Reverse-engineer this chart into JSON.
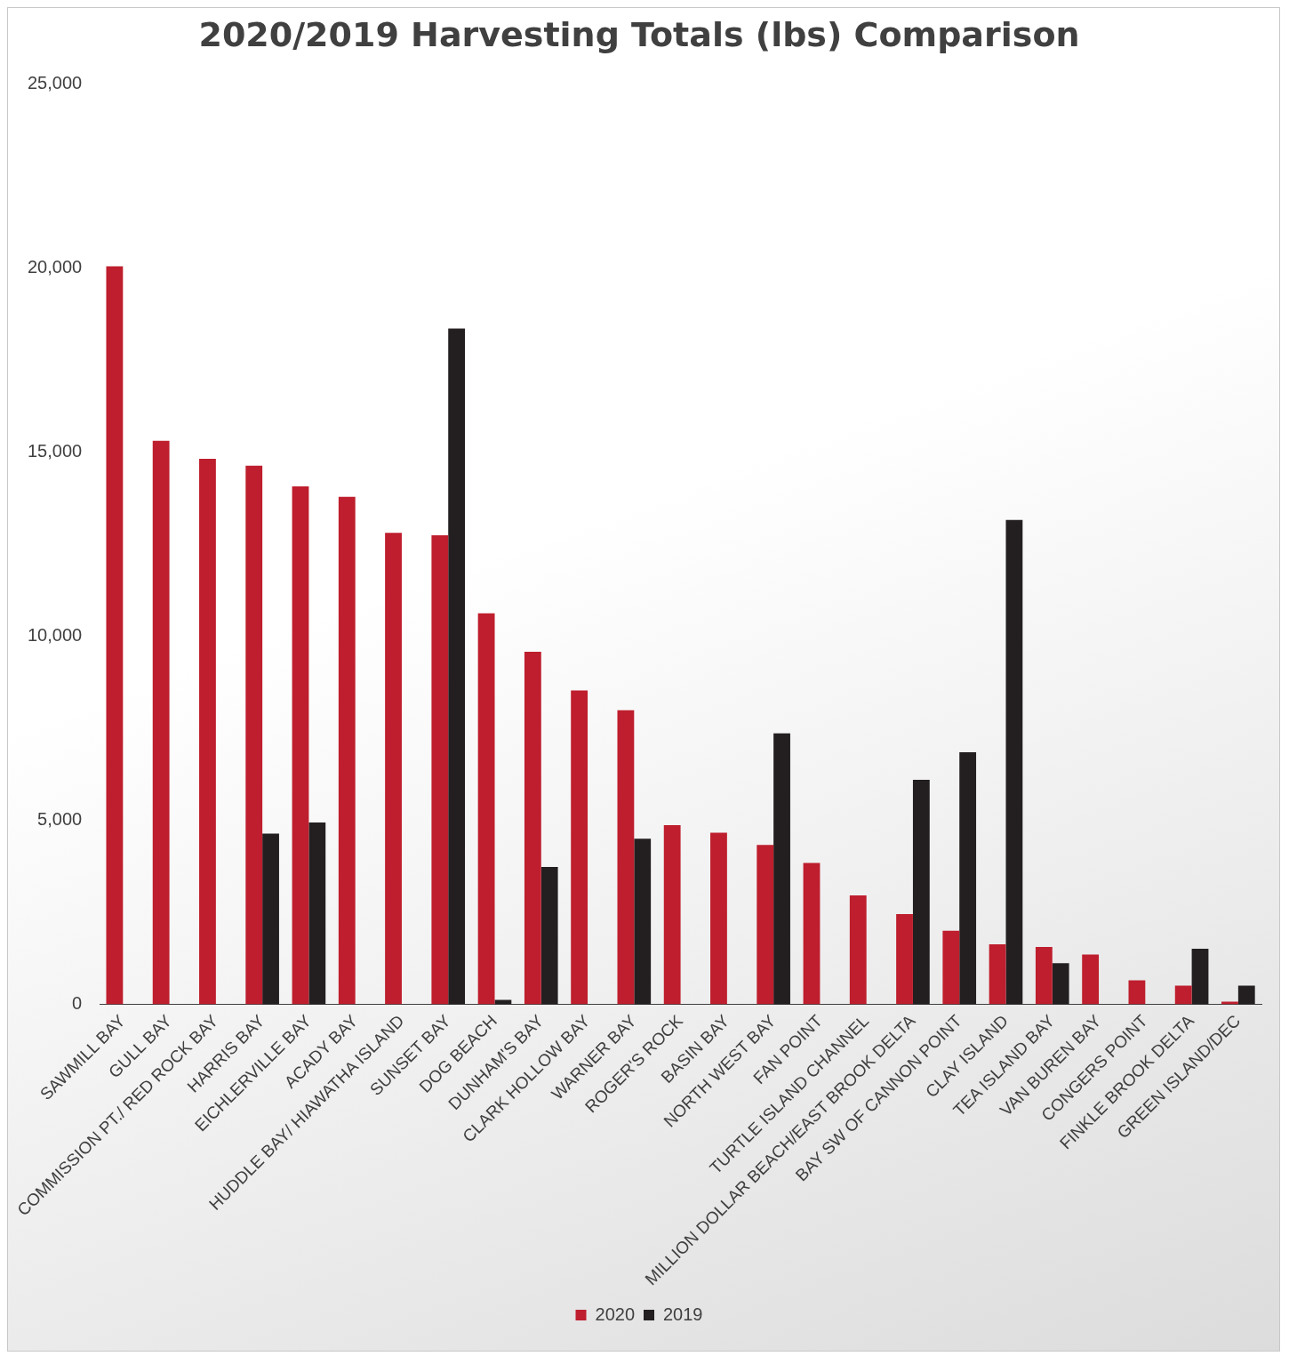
{
  "chart_data": {
    "type": "bar",
    "title": "2020/2019 Harvesting Totals (lbs) Comparison",
    "categories": [
      "SAWMILL BAY",
      "GULL BAY",
      "COMMISSION PT./ RED ROCK BAY",
      "HARRIS BAY",
      "EICHLERVILLE BAY",
      "ACADY BAY",
      "HUDDLE BAY/ HIAWATHA ISLAND",
      "SUNSET BAY",
      "DOG BEACH",
      "DUNHAM'S BAY",
      "CLARK HOLLOW BAY",
      "WARNER BAY",
      "ROGER'S ROCK",
      "BASIN BAY",
      "NORTH WEST BAY",
      "FAN POINT",
      "TURTLE ISLAND CHANNEL",
      "MILLION DOLLAR BEACH/EAST BROOK DELTA",
      "BAY SW OF CANNON POINT",
      "CLAY ISLAND",
      "TEA ISLAND BAY",
      "VAN BUREN BAY",
      "CONGERS POINT",
      "FINKLE BROOK DELTA",
      "GREEN ISLAND/DEC"
    ],
    "series": [
      {
        "name": "2020",
        "color": "#be1e2d",
        "values": [
          20050,
          15310,
          14820,
          14630,
          14070,
          13790,
          12810,
          12740,
          10620,
          9580,
          8530,
          7990,
          4870,
          4660,
          4330,
          3840,
          2960,
          2450,
          2000,
          1630,
          1560,
          1350,
          650,
          510,
          70
        ]
      },
      {
        "name": "2019",
        "color": "#231f20",
        "values": [
          null,
          null,
          null,
          4640,
          4940,
          null,
          null,
          18360,
          120,
          3730,
          null,
          4500,
          null,
          null,
          7360,
          null,
          null,
          6100,
          6850,
          13160,
          1120,
          null,
          null,
          1510,
          510
        ]
      }
    ],
    "ylim": [
      0,
      25000
    ],
    "yticks": [
      0,
      {
        "value": 5000,
        "label": "5,000"
      },
      {
        "value": 10000,
        "label": "10,000"
      },
      {
        "value": 15000,
        "label": "15,000"
      },
      {
        "value": 20000,
        "label": "20,000"
      },
      {
        "value": 25000,
        "label": "25,000"
      }
    ],
    "grid": false,
    "legend": "bottom"
  }
}
